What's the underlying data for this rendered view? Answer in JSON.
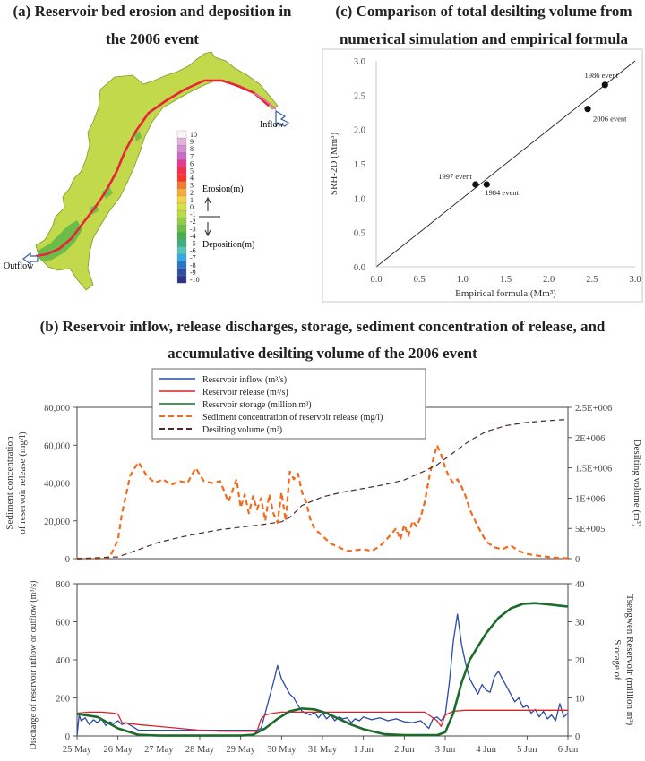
{
  "panel_a": {
    "title_line1": "(a) Reservoir bed erosion and deposition in",
    "title_line2": "the 2006 event",
    "inflow_label": "Inflow",
    "outflow_label": "Outflow",
    "erosion_label": "Erosion(m)",
    "deposition_label": "Deposition(m)",
    "colors": {
      "lake": "#c2d94c",
      "channel": "#e8233a",
      "deposition": "#5cb648"
    }
  },
  "panel_c": {
    "title_line1": "(c) Comparison of total desilting volume from",
    "title_line2": "numerical simulation and empirical formula"
  },
  "panel_b": {
    "title_line1": "(b) Reservoir inflow, release discharges, storage, sediment concentration of release, and",
    "title_line2": "accumulative desilting volume of the 2006 event"
  },
  "chart_data": [
    {
      "id": "a",
      "type": "heatmap",
      "title": "(a) Reservoir bed erosion and deposition in the 2006 event",
      "colorbar": {
        "ticks": [
          "10",
          "9",
          "8",
          "7",
          "6",
          "5",
          "4",
          "3",
          "2",
          "1",
          "0",
          "-1",
          "-2",
          "-3",
          "-4",
          "-5",
          "-6",
          "-7",
          "-8",
          "-9",
          "-10"
        ],
        "colors": [
          "#fbf5f5",
          "#e2b4dc",
          "#d38fd0",
          "#c86ac6",
          "#e6398f",
          "#f42d51",
          "#f7332b",
          "#f27a2f",
          "#f7ab3a",
          "#f6d24a",
          "#d5e344",
          "#bcda45",
          "#96cc45",
          "#6ebe4a",
          "#46b04d",
          "#3eae84",
          "#54c6b4",
          "#34a9e3",
          "#2a76c6",
          "#2c4ea5",
          "#2a3585"
        ]
      }
    },
    {
      "id": "c",
      "type": "scatter",
      "title": "(c) Comparison of total desilting volume from numerical simulation and empirical formula",
      "xlabel": "Empirical formula (Mm³)",
      "ylabel": "SRH-2D (Mm³)",
      "xlim": [
        0,
        3
      ],
      "ylim": [
        0,
        3
      ],
      "xticks": [
        "0.0",
        "0.5",
        "1.0",
        "1.5",
        "2.0",
        "2.5",
        "3.0"
      ],
      "yticks": [
        "0.0",
        "0.5",
        "1.0",
        "1.5",
        "2.0",
        "2.5",
        "3.0"
      ],
      "points": [
        {
          "label": "1984 event",
          "x": 1.28,
          "y": 1.2
        },
        {
          "label": "1997 event",
          "x": 1.15,
          "y": 1.2
        },
        {
          "label": "2006 event",
          "x": 2.45,
          "y": 2.3
        },
        {
          "label": "1986 event",
          "x": 2.65,
          "y": 2.65
        }
      ],
      "reference_line": {
        "x": [
          0,
          3
        ],
        "y": [
          0,
          3
        ]
      }
    },
    {
      "id": "b_upper",
      "type": "line",
      "ylabel": "Sediment concentration of reservoir release (mg/l)",
      "y2label": "Desilting volume (m³)",
      "ylim": [
        0,
        80000
      ],
      "y2lim": [
        0,
        2500000
      ],
      "yticks": [
        "0",
        "20,000",
        "40,000",
        "60,000",
        "80,000"
      ],
      "y2ticks": [
        "0",
        "5E+005",
        "1E+006",
        "1.5E+006",
        "2E+006",
        "2.5E+006"
      ],
      "x_range_days": [
        0,
        12
      ],
      "legend": [
        {
          "name": "Reservoir inflow (m³/s)",
          "color": "#2a4aa8",
          "dash": ""
        },
        {
          "name": "Reservoir release (m³/s)",
          "color": "#d8232a",
          "dash": ""
        },
        {
          "name": "Reservoir storage (million m³)",
          "color": "#1c6a2c",
          "dash": ""
        },
        {
          "name": "Sediment concentration of reservoir release (mg/l)",
          "color": "#f26b1d",
          "dash": "6,4"
        },
        {
          "name": "Desilting volume (m³)",
          "color": "#4a2a2a",
          "dash": "6,4"
        }
      ],
      "series": [
        {
          "name": "Sediment concentration of reservoir release (mg/l)",
          "axis": "left",
          "x": [
            0,
            0.5,
            0.8,
            1.0,
            1.1,
            1.3,
            1.5,
            1.7,
            1.9,
            2.1,
            2.3,
            2.5,
            2.7,
            2.9,
            3.1,
            3.3,
            3.5,
            3.7,
            3.9,
            4.0,
            4.1,
            4.2,
            4.3,
            4.4,
            4.5,
            4.6,
            4.7,
            4.8,
            4.9,
            5.0,
            5.1,
            5.2,
            5.3,
            5.4,
            5.5,
            5.6,
            5.7,
            5.8,
            5.9,
            6.0,
            6.2,
            6.4,
            6.6,
            6.8,
            7.0,
            7.2,
            7.4,
            7.6,
            7.8,
            7.9,
            8.0,
            8.1,
            8.2,
            8.3,
            8.4,
            8.5,
            8.6,
            8.7,
            8.8,
            8.9,
            9.0,
            9.1,
            9.2,
            9.3,
            9.4,
            9.5,
            9.6,
            9.8,
            10.0,
            10.2,
            10.4,
            10.6,
            10.8,
            11.0,
            11.2,
            11.4,
            11.6,
            11.8,
            12.0
          ],
          "y": [
            0,
            0,
            800,
            10000,
            24000,
            44000,
            51000,
            44000,
            40000,
            42000,
            39000,
            41000,
            40000,
            48000,
            41000,
            40000,
            41000,
            30000,
            42000,
            27000,
            34000,
            24000,
            33000,
            26000,
            32000,
            20000,
            34000,
            24000,
            19000,
            35000,
            20000,
            46000,
            42000,
            45000,
            35000,
            30000,
            21000,
            16000,
            14000,
            12000,
            8000,
            6000,
            4000,
            4500,
            5000,
            4000,
            6500,
            11000,
            16000,
            10000,
            18000,
            12000,
            20000,
            17000,
            22000,
            30000,
            42000,
            52000,
            60000,
            55000,
            48000,
            43000,
            40000,
            42000,
            38000,
            33000,
            26000,
            17000,
            9000,
            6000,
            5000,
            7000,
            4000,
            2500,
            1800,
            1200,
            700,
            400,
            200
          ]
        },
        {
          "name": "Desilting volume (m³)",
          "axis": "right",
          "x": [
            0,
            1.0,
            1.5,
            2.0,
            2.5,
            3.0,
            3.5,
            4.0,
            4.5,
            5.0,
            5.2,
            5.5,
            6.0,
            6.5,
            7.0,
            7.5,
            8.0,
            8.5,
            8.8,
            9.0,
            9.3,
            9.6,
            10.0,
            10.5,
            11.0,
            11.5,
            12.0
          ],
          "y": [
            0,
            30000,
            150000,
            270000,
            350000,
            420000,
            480000,
            520000,
            560000,
            610000,
            680000,
            880000,
            1020000,
            1100000,
            1160000,
            1220000,
            1300000,
            1450000,
            1550000,
            1650000,
            1800000,
            1950000,
            2100000,
            2200000,
            2250000,
            2280000,
            2300000
          ]
        }
      ]
    },
    {
      "id": "b_lower",
      "type": "line",
      "ylabel": "Discharge of reservoir inflow or outflow (m³/s)",
      "y2label": "Storage of Tsengwen Reservoir (million m³)",
      "ylim": [
        0,
        800
      ],
      "y2lim": [
        0,
        40
      ],
      "yticks": [
        "0",
        "200",
        "400",
        "600",
        "800"
      ],
      "y2ticks": [
        "0",
        "10",
        "20",
        "30",
        "40"
      ],
      "xticks": [
        "25 May",
        "26 May",
        "27 May",
        "28 May",
        "29 May",
        "30 May",
        "31 May",
        "1 Jun",
        "2 Jun",
        "3 Jun",
        "4 Jun",
        "5 Jun",
        "6 Jun"
      ],
      "x_range_days": [
        0,
        12
      ],
      "series": [
        {
          "name": "Reservoir inflow (m³/s)",
          "axis": "left",
          "x": [
            0,
            0.05,
            0.1,
            0.2,
            0.3,
            0.4,
            0.5,
            0.6,
            0.7,
            0.8,
            0.9,
            1.0,
            1.1,
            1.2,
            1.5,
            2.0,
            2.5,
            3.0,
            3.5,
            4.0,
            4.2,
            4.4,
            4.5,
            4.6,
            4.7,
            4.8,
            4.9,
            5.0,
            5.1,
            5.2,
            5.3,
            5.4,
            5.5,
            5.6,
            5.7,
            5.8,
            5.9,
            6.0,
            6.1,
            6.2,
            6.3,
            6.4,
            6.5,
            6.6,
            6.7,
            6.8,
            6.9,
            7.0,
            7.2,
            7.4,
            7.6,
            7.8,
            8.0,
            8.2,
            8.4,
            8.5,
            8.6,
            8.7,
            8.8,
            8.9,
            9.0,
            9.1,
            9.2,
            9.3,
            9.4,
            9.5,
            9.6,
            9.7,
            9.8,
            9.9,
            10.0,
            10.1,
            10.2,
            10.3,
            10.4,
            10.5,
            10.6,
            10.7,
            10.8,
            10.9,
            11.0,
            11.1,
            11.2,
            11.3,
            11.4,
            11.5,
            11.6,
            11.7,
            11.8,
            11.9,
            12.0
          ],
          "y": [
            0,
            110,
            80,
            95,
            60,
            85,
            70,
            90,
            55,
            75,
            65,
            80,
            60,
            70,
            30,
            30,
            30,
            30,
            30,
            30,
            30,
            30,
            40,
            120,
            200,
            280,
            370,
            300,
            260,
            220,
            200,
            160,
            130,
            120,
            110,
            125,
            95,
            120,
            90,
            110,
            80,
            100,
            90,
            95,
            70,
            90,
            80,
            100,
            85,
            95,
            80,
            90,
            75,
            70,
            80,
            60,
            40,
            90,
            100,
            80,
            110,
            280,
            500,
            640,
            480,
            380,
            300,
            260,
            220,
            270,
            240,
            230,
            310,
            340,
            300,
            260,
            220,
            180,
            200,
            150,
            160,
            120,
            140,
            100,
            130,
            90,
            110,
            80,
            170,
            100,
            120
          ]
        },
        {
          "name": "Reservoir release (m³/s)",
          "axis": "left",
          "x": [
            0,
            0.3,
            0.6,
            0.9,
            1.0,
            1.1,
            1.5,
            2.0,
            2.5,
            3.0,
            3.5,
            4.0,
            4.2,
            4.4,
            4.5,
            4.6,
            4.8,
            5.0,
            5.5,
            6.0,
            6.5,
            7.0,
            7.5,
            8.0,
            8.5,
            8.8,
            8.9,
            9.0,
            9.2,
            9.5,
            10.0,
            10.5,
            11.0,
            11.5,
            12.0
          ],
          "y": [
            120,
            125,
            125,
            120,
            115,
            70,
            60,
            50,
            40,
            30,
            25,
            25,
            25,
            25,
            90,
            110,
            120,
            125,
            125,
            125,
            125,
            125,
            125,
            125,
            125,
            80,
            50,
            110,
            130,
            135,
            135,
            135,
            135,
            135,
            135
          ]
        },
        {
          "name": "Reservoir storage (million m³)",
          "axis": "right",
          "x": [
            0,
            0.5,
            1.0,
            1.5,
            2.0,
            2.5,
            3.0,
            3.5,
            4.0,
            4.3,
            4.6,
            4.9,
            5.2,
            5.5,
            5.8,
            6.1,
            6.4,
            6.7,
            7.0,
            7.5,
            8.0,
            8.5,
            8.8,
            9.0,
            9.2,
            9.4,
            9.6,
            9.8,
            10.0,
            10.3,
            10.6,
            10.9,
            11.2,
            11.5,
            11.8,
            12.0
          ],
          "y": [
            5.8,
            5.0,
            2.0,
            0.3,
            0.1,
            0.1,
            0.1,
            0.1,
            0.1,
            0.3,
            2.0,
            4.5,
            6.5,
            7.2,
            7.0,
            6.0,
            4.5,
            3.0,
            1.8,
            0.5,
            0.2,
            0.2,
            0.2,
            1.0,
            6.0,
            14.0,
            20.0,
            23.5,
            27.0,
            31.0,
            33.5,
            34.7,
            34.9,
            34.6,
            34.2,
            34.0
          ]
        }
      ]
    }
  ]
}
